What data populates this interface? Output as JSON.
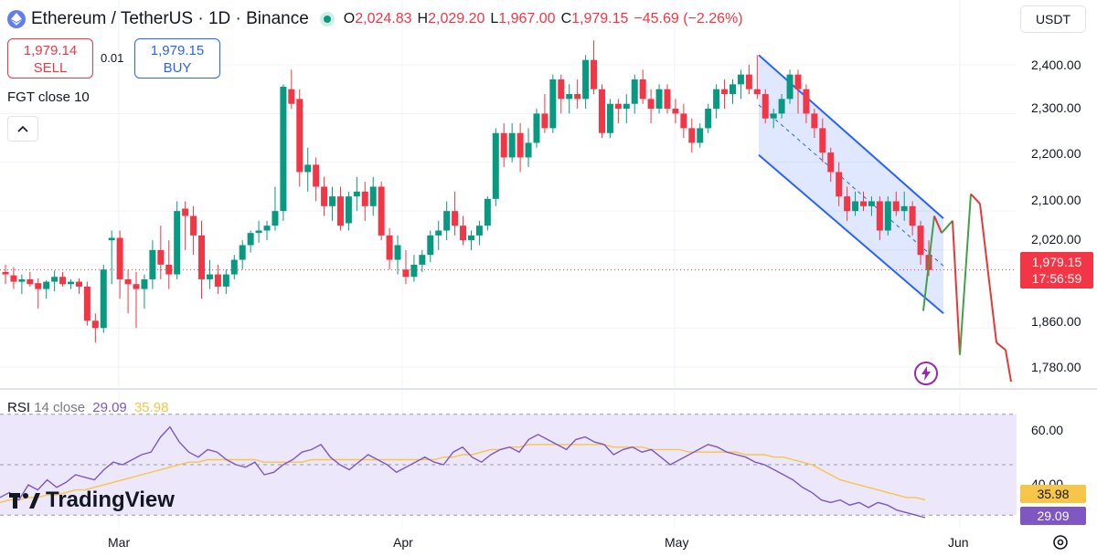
{
  "header": {
    "symbol_title": "Ethereum / TetherUS · 1D · Binance",
    "ohlc": {
      "o_key": "O",
      "o_val": "2,024.83",
      "h_key": "H",
      "h_val": "2,029.20",
      "l_key": "L",
      "l_val": "1,967.00",
      "c_key": "C",
      "c_val": "1,979.15",
      "change": "−45.69 (−2.26%)"
    }
  },
  "trade": {
    "sell_price": "1,979.14",
    "sell_label": "SELL",
    "spread": "0.01",
    "buy_price": "1,979.15",
    "buy_label": "BUY"
  },
  "indicator_label": "FGT close 10",
  "currency_button": "USDT",
  "rsi_legend": {
    "name": "RSI",
    "params": "14 close",
    "rsi_value": "29.09",
    "ma_value": "35.98"
  },
  "brand": "TradingView",
  "price_tag": {
    "price": "1,979.15",
    "countdown": "17:56:59"
  },
  "rsi_tags": {
    "ma": "35.98",
    "rsi": "29.09"
  },
  "colors": {
    "up": "#089981",
    "down": "#f23645",
    "channel": "#2962ff",
    "rsi": "#7e57c2",
    "rsi_ma": "#f7c548",
    "rsi_band": "#ede7fb"
  },
  "chart_data": [
    {
      "type": "candlestick",
      "title": "Ethereum / TetherUS · 1D · Binance",
      "y_ticks": [
        "2,400.00",
        "2,300.00",
        "2,200.00",
        "2,100.00",
        "2,020.00",
        "1,860.00",
        "1,780.00"
      ],
      "x_ticks": [
        "Mar",
        "Apr",
        "May",
        "Jun"
      ],
      "current_price": 1979.15,
      "ohlc": [
        [
          1975,
          1990,
          1950,
          1970
        ],
        [
          1968,
          1985,
          1940,
          1955
        ],
        [
          1955,
          1970,
          1930,
          1960
        ],
        [
          1960,
          1975,
          1945,
          1950
        ],
        [
          1952,
          1962,
          1900,
          1940
        ],
        [
          1940,
          1958,
          1920,
          1955
        ],
        [
          1955,
          1978,
          1935,
          1965
        ],
        [
          1965,
          1975,
          1945,
          1950
        ],
        [
          1950,
          1960,
          1940,
          1955
        ],
        [
          1955,
          1962,
          1930,
          1945
        ],
        [
          1945,
          1955,
          1865,
          1875
        ],
        [
          1875,
          1890,
          1830,
          1860
        ],
        [
          1860,
          1990,
          1850,
          1980
        ],
        [
          2040,
          2060,
          1950,
          2045
        ],
        [
          2045,
          2060,
          1920,
          1960
        ],
        [
          1960,
          1980,
          1890,
          1950
        ],
        [
          1950,
          1975,
          1860,
          1940
        ],
        [
          1940,
          1970,
          1900,
          1960
        ],
        [
          1960,
          2040,
          1940,
          2020
        ],
        [
          2020,
          2070,
          1960,
          1990
        ],
        [
          1990,
          2040,
          1940,
          1970
        ],
        [
          1970,
          2120,
          1960,
          2100
        ],
        [
          2105,
          2120,
          2020,
          2090
        ],
        [
          2090,
          2110,
          2010,
          2050
        ],
        [
          2050,
          2080,
          1920,
          1960
        ],
        [
          1960,
          2000,
          1940,
          1970
        ],
        [
          1970,
          1990,
          1930,
          1945
        ],
        [
          1945,
          1980,
          1930,
          1970
        ],
        [
          1970,
          2010,
          1960,
          2000
        ],
        [
          2000,
          2040,
          1980,
          2030
        ],
        [
          2030,
          2060,
          2015,
          2055
        ],
        [
          2055,
          2080,
          2035,
          2060
        ],
        [
          2060,
          2080,
          2040,
          2070
        ],
        [
          2070,
          2150,
          2060,
          2100
        ],
        [
          2100,
          2360,
          2080,
          2355
        ],
        [
          2350,
          2390,
          2310,
          2320
        ],
        [
          2330,
          2350,
          2150,
          2180
        ],
        [
          2180,
          2230,
          2140,
          2195
        ],
        [
          2195,
          2210,
          2120,
          2150
        ],
        [
          2150,
          2170,
          2090,
          2110
        ],
        [
          2110,
          2150,
          2080,
          2130
        ],
        [
          2130,
          2150,
          2060,
          2070
        ],
        [
          2075,
          2140,
          2060,
          2130
        ],
        [
          2130,
          2170,
          2100,
          2140
        ],
        [
          2140,
          2160,
          2080,
          2110
        ],
        [
          2110,
          2170,
          2090,
          2150
        ],
        [
          2150,
          2160,
          2040,
          2050
        ],
        [
          2050,
          2065,
          1980,
          2000
        ],
        [
          2000,
          2050,
          1970,
          2030
        ],
        [
          1980,
          2020,
          1950,
          1965
        ],
        [
          1965,
          2010,
          1955,
          1990
        ],
        [
          1990,
          2020,
          1975,
          2010
        ],
        [
          2010,
          2060,
          1995,
          2050
        ],
        [
          2050,
          2080,
          2020,
          2060
        ],
        [
          2060,
          2120,
          2040,
          2100
        ],
        [
          2100,
          2140,
          2050,
          2070
        ],
        [
          2070,
          2090,
          2030,
          2040
        ],
        [
          2040,
          2060,
          2020,
          2050
        ],
        [
          2050,
          2080,
          2030,
          2070
        ],
        [
          2070,
          2130,
          2060,
          2125
        ],
        [
          2125,
          2270,
          2110,
          2260
        ],
        [
          2260,
          2280,
          2190,
          2210
        ],
        [
          2210,
          2280,
          2200,
          2260
        ],
        [
          2260,
          2280,
          2180,
          2210
        ],
        [
          2210,
          2270,
          2190,
          2240
        ],
        [
          2240,
          2310,
          2230,
          2300
        ],
        [
          2300,
          2340,
          2260,
          2270
        ],
        [
          2270,
          2380,
          2260,
          2370
        ],
        [
          2370,
          2380,
          2300,
          2330
        ],
        [
          2330,
          2360,
          2300,
          2340
        ],
        [
          2340,
          2370,
          2310,
          2330
        ],
        [
          2330,
          2420,
          2310,
          2410
        ],
        [
          2410,
          2450,
          2340,
          2350
        ],
        [
          2350,
          2360,
          2250,
          2260
        ],
        [
          2260,
          2330,
          2250,
          2320
        ],
        [
          2320,
          2330,
          2280,
          2310
        ],
        [
          2310,
          2340,
          2280,
          2320
        ],
        [
          2320,
          2380,
          2300,
          2370
        ],
        [
          2370,
          2390,
          2320,
          2330
        ],
        [
          2330,
          2350,
          2280,
          2310
        ],
        [
          2310,
          2360,
          2300,
          2350
        ],
        [
          2350,
          2360,
          2300,
          2310
        ],
        [
          2310,
          2330,
          2280,
          2300
        ],
        [
          2300,
          2320,
          2250,
          2270
        ],
        [
          2270,
          2290,
          2220,
          2240
        ],
        [
          2240,
          2280,
          2230,
          2270
        ],
        [
          2270,
          2320,
          2260,
          2310
        ],
        [
          2310,
          2360,
          2290,
          2350
        ],
        [
          2350,
          2370,
          2310,
          2340
        ],
        [
          2340,
          2370,
          2320,
          2360
        ],
        [
          2360,
          2390,
          2330,
          2380
        ],
        [
          2380,
          2400,
          2340,
          2350
        ],
        [
          2350,
          2420,
          2330,
          2340
        ],
        [
          2340,
          2350,
          2280,
          2290
        ],
        [
          2290,
          2310,
          2270,
          2300
        ],
        [
          2300,
          2340,
          2290,
          2330
        ],
        [
          2330,
          2390,
          2320,
          2380
        ],
        [
          2380,
          2390,
          2300,
          2350
        ],
        [
          2350,
          2360,
          2280,
          2300
        ],
        [
          2300,
          2310,
          2250,
          2270
        ],
        [
          2270,
          2290,
          2200,
          2220
        ],
        [
          2220,
          2230,
          2160,
          2180
        ],
        [
          2180,
          2200,
          2110,
          2130
        ],
        [
          2130,
          2150,
          2080,
          2100
        ],
        [
          2100,
          2140,
          2090,
          2120
        ],
        [
          2120,
          2140,
          2100,
          2110
        ],
        [
          2110,
          2130,
          2090,
          2120
        ],
        [
          2120,
          2130,
          2040,
          2060
        ],
        [
          2060,
          2130,
          2050,
          2120
        ],
        [
          2120,
          2140,
          2090,
          2100
        ],
        [
          2100,
          2140,
          2080,
          2110
        ],
        [
          2110,
          2120,
          2050,
          2070
        ],
        [
          2070,
          2080,
          1990,
          2010
        ],
        [
          2010,
          2040,
          1967,
          1979
        ]
      ],
      "projection": [
        {
          "x": 0,
          "y": 1895
        },
        {
          "x": 1,
          "y": 2090
        },
        {
          "x": 2,
          "y": 2055
        },
        {
          "x": 3,
          "y": 2080
        },
        {
          "x": 4,
          "y": 1805
        },
        {
          "x": 5,
          "y": 2135
        },
        {
          "x": 6,
          "y": 2115
        },
        {
          "x": 7,
          "y": 1830
        },
        {
          "x": 8,
          "y": 1815
        },
        {
          "x": 9,
          "y": 1750
        }
      ],
      "channel": {
        "upper": [
          2420,
          2085
        ],
        "lower": [
          2215,
          1890
        ]
      }
    },
    {
      "type": "line",
      "title": "RSI 14 close",
      "y_ticks": [
        "60.00",
        "40.00"
      ],
      "ylim": [
        25,
        75
      ],
      "series": [
        {
          "name": "RSI",
          "values": [
            37,
            39,
            36,
            42,
            40,
            44,
            41,
            43,
            46,
            45,
            44,
            48,
            51,
            50,
            52,
            54,
            55,
            61,
            65,
            59,
            55,
            53,
            56,
            55,
            52,
            50,
            49,
            51,
            46,
            47,
            50,
            52,
            55,
            56,
            58,
            53,
            50,
            48,
            51,
            54,
            52,
            50,
            47,
            49,
            51,
            53,
            51,
            50,
            55,
            57,
            53,
            51,
            54,
            56,
            57,
            55,
            60,
            62,
            60,
            58,
            56,
            60,
            61,
            59,
            58,
            54,
            56,
            57,
            55,
            56,
            53,
            50,
            52,
            54,
            56,
            58,
            57,
            55,
            54,
            53,
            51,
            50,
            48,
            46,
            44,
            41,
            39,
            36,
            35,
            36,
            34,
            35,
            33,
            35,
            34,
            32,
            31,
            30,
            29
          ]
        },
        {
          "name": "MA",
          "values": [
            35,
            36,
            36,
            37,
            37,
            38,
            38,
            39,
            40,
            40,
            41,
            42,
            43,
            44,
            45,
            46,
            47,
            48,
            49,
            50,
            51,
            51,
            52,
            52,
            52,
            52,
            52,
            52,
            51,
            51,
            51,
            51,
            51,
            52,
            52,
            52,
            52,
            52,
            52,
            52,
            52,
            52,
            52,
            52,
            52,
            52,
            52,
            53,
            53,
            54,
            54,
            55,
            56,
            56,
            57,
            57,
            58,
            58,
            58,
            58,
            58,
            58,
            58,
            58,
            58,
            57,
            57,
            57,
            57,
            56,
            56,
            56,
            56,
            55,
            55,
            55,
            55,
            55,
            55,
            54,
            54,
            54,
            53,
            53,
            52,
            51,
            50,
            48,
            46,
            44,
            43,
            42,
            41,
            40,
            39,
            38,
            37,
            37,
            36
          ]
        }
      ]
    }
  ]
}
